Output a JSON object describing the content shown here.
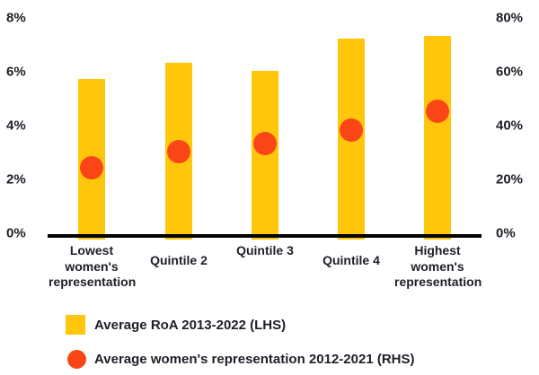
{
  "chart_data": {
    "type": "combo-bar-scatter",
    "categories": [
      "Lowest women's representation",
      "Quintile 2",
      "Quintile 3",
      "Quintile 4",
      "Highest women's representation"
    ],
    "series": [
      {
        "name": "Average RoA 2013-2022 (LHS)",
        "type": "bar",
        "axis": "left",
        "marker": "square",
        "color": "#FFC60B",
        "values": [
          5.8,
          6.4,
          6.1,
          7.3,
          7.4
        ]
      },
      {
        "name": "Average women's representation 2012-2021 (RHS)",
        "type": "scatter",
        "axis": "right",
        "marker": "circle",
        "color": "#FA4616",
        "values": [
          25,
          31,
          34,
          39,
          46
        ]
      }
    ],
    "left_axis": {
      "ticks": [
        "8%",
        "6%",
        "4%",
        "2%",
        "0%"
      ],
      "min": 0,
      "max": 8,
      "unit": "%"
    },
    "right_axis": {
      "ticks": [
        "80%",
        "60%",
        "40%",
        "20%",
        "0%"
      ],
      "min": 0,
      "max": 80,
      "unit": "%"
    },
    "grid": false,
    "legend_position": "bottom-left",
    "colors": {
      "bar": "#FFC60B",
      "dot": "#FA4616",
      "axis_line": "#000000",
      "text": "#1E1E28",
      "background": "#FFFFFF"
    }
  }
}
